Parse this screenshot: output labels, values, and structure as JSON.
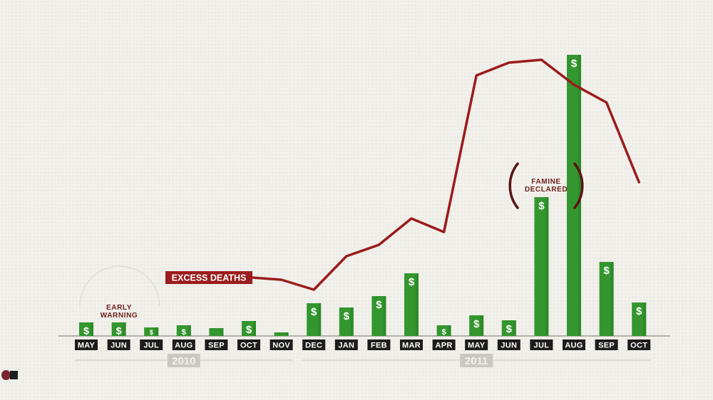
{
  "colors": {
    "bar": "#33962e",
    "bar_dark": "#23751f",
    "line": "#9b1c1c",
    "label_bg": "#1c1c1c",
    "year_bg": "#c9c8c3",
    "annotation": "#6f1f1f",
    "axis": "#8a8a86"
  },
  "chart_data": {
    "type": "bar",
    "categories": [
      "MAY",
      "JUN",
      "JUL",
      "AUG",
      "SEP",
      "OCT",
      "NOV",
      "DEC",
      "JAN",
      "FEB",
      "MAR",
      "APR",
      "MAY",
      "JUN",
      "JUL",
      "AUG",
      "SEP",
      "OCT"
    ],
    "years": [
      {
        "label": "2010",
        "from": 0,
        "to": 6
      },
      {
        "label": "2011",
        "from": 7,
        "to": 17
      }
    ],
    "series": [
      {
        "name": "",
        "mark": "$",
        "kind": "bar",
        "values": [
          19,
          19,
          12,
          15,
          11,
          21,
          5,
          46,
          40,
          56,
          88,
          15,
          29,
          22,
          195,
          395,
          104,
          47
        ]
      },
      {
        "name": "EXCESS DEATHS",
        "kind": "line",
        "values": [
          null,
          null,
          null,
          null,
          null,
          null,
          null,
          null,
          112,
          128,
          165,
          146,
          366,
          384,
          388,
          353,
          328,
          216
        ],
        "start_values": [
          82,
          79,
          65
        ]
      }
    ],
    "annotations": [
      {
        "text": [
          "EARLY",
          "WARNING"
        ],
        "near": "MAY–JUN 2010"
      },
      {
        "text": [
          "FAMINE",
          "DECLARED"
        ],
        "near": "JUL–AUG 2011"
      }
    ],
    "ylim": [
      0,
      400
    ],
    "grid": false,
    "title": "",
    "xlabel": "",
    "ylabel": ""
  }
}
